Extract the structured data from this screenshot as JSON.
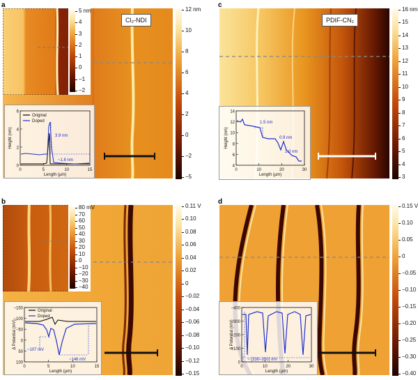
{
  "panels": [
    {
      "id": "a",
      "label": "a",
      "tag": "Cl₂-NDI",
      "colorbar": [
        "12 nm",
        "10",
        "8",
        "6",
        "4",
        "2",
        "0",
        "−2",
        "−5"
      ],
      "inset_colorbar": [
        "5 nm",
        "4",
        "3",
        "2",
        "1",
        "0",
        "−1",
        "−2"
      ],
      "plot": {
        "ylabel": "Height (nm)",
        "xlabel": "Length (μm)",
        "yticks": [
          "0",
          "2",
          "4",
          "6"
        ],
        "xticks": [
          "0",
          "5",
          "10",
          "15"
        ],
        "legend": [
          "Original",
          "Doped"
        ],
        "annotations": [
          "3.9 nm",
          "~1.8 nm"
        ]
      }
    },
    {
      "id": "b",
      "label": "b",
      "colorbar": [
        "0.11 V",
        "0.10",
        "0.08",
        "0.06",
        "0.04",
        "0.02",
        "0",
        "−0.02",
        "−0.04",
        "−0.06",
        "−0.08",
        "−0.10",
        "−0.12",
        "−0.15"
      ],
      "inset_colorbar": [
        "80 mV",
        "70",
        "60",
        "50",
        "40",
        "30",
        "20",
        "10",
        "0",
        "−10",
        "−20",
        "−30",
        "−40"
      ],
      "plot": {
        "ylabel": "Δ Potential (mV)",
        "xlabel": "Length (μm)",
        "yticks": [
          "100",
          "50",
          "0",
          "−50",
          "−100",
          "−150"
        ],
        "xticks": [
          "0",
          "5",
          "10",
          "15"
        ],
        "legend": [
          "Original",
          "Doped"
        ],
        "annotations": [
          "~107 mV",
          "~146 mV"
        ]
      }
    },
    {
      "id": "c",
      "label": "c",
      "tag": "PDIF-CN₂",
      "colorbar": [
        "16 nm",
        "15",
        "14",
        "13",
        "12",
        "11",
        "10",
        "9",
        "8",
        "7",
        "6",
        "5",
        "4",
        "3"
      ],
      "plot": {
        "ylabel": "Height (nm)",
        "xlabel": "Length (μm)",
        "yticks": [
          "4",
          "6",
          "8",
          "10",
          "12",
          "14"
        ],
        "xticks": [
          "0",
          "10",
          "20",
          "30"
        ],
        "annotations": [
          "1.5 nm",
          "0.9 nm",
          "2.0 nm"
        ]
      }
    },
    {
      "id": "d",
      "label": "d",
      "colorbar": [
        "0.15 V",
        "0.10",
        "0.05",
        "0",
        "−0.05",
        "−0.10",
        "−0.15",
        "−0.20",
        "−0.25",
        "−0.30",
        "−0.40"
      ],
      "plot": {
        "ylabel": "Δ Potential (mV)",
        "xlabel": "Length (μm)",
        "yticks": [
          "0",
          "−100",
          "−200",
          "−300",
          "−400"
        ],
        "xticks": [
          "0",
          "10",
          "20",
          "30"
        ],
        "annotations": [
          "~ (330–350) mV"
        ]
      }
    }
  ],
  "colors": {
    "afm_dark": "#3a0800",
    "afm_mid": "#d25a0c",
    "afm_light": "#fbe7a3",
    "doped": "#1e2fd0",
    "original": "#000000"
  }
}
